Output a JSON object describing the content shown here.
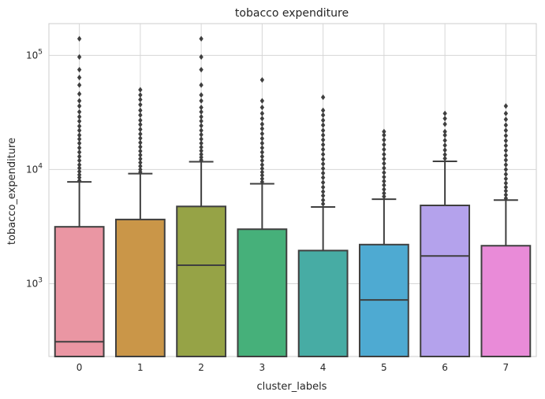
{
  "chart_data": {
    "type": "box",
    "title": "tobacco expenditure",
    "xlabel": "cluster_labels",
    "ylabel": "tobacco_expenditure",
    "yscale": "log",
    "ylim": [
      230,
      190000
    ],
    "yticks": [
      {
        "value": 1000,
        "base": "10",
        "exp": "3"
      },
      {
        "value": 10000,
        "base": "10",
        "exp": "4"
      },
      {
        "value": 100000,
        "base": "10",
        "exp": "5"
      }
    ],
    "grid": true,
    "categories": [
      "0",
      "1",
      "2",
      "3",
      "4",
      "5",
      "6",
      "7"
    ],
    "colors": [
      "#ea96a3",
      "#ca9648",
      "#96a346",
      "#46b07a",
      "#47aca4",
      "#4eaad2",
      "#b4a2ec",
      "#e98bd8"
    ],
    "boxes": [
      {
        "whisker_low": 230,
        "q1": 230,
        "median": 310,
        "q3": 3150,
        "whisker_high": 7800,
        "outliers": [
          8000,
          8500,
          9000,
          9600,
          10300,
          11000,
          12000,
          13000,
          14200,
          15500,
          17000,
          18500,
          20000,
          22000,
          24000,
          26500,
          29000,
          32000,
          36000,
          40000,
          46000,
          55000,
          64000,
          75000,
          97000,
          140000
        ]
      },
      {
        "whisker_low": 230,
        "q1": 230,
        "median": 230,
        "q3": 3650,
        "whisker_high": 9200,
        "outliers": [
          9500,
          10000,
          10700,
          11500,
          12400,
          13400,
          14500,
          15800,
          17200,
          18800,
          20500,
          22500,
          24800,
          27000,
          30000,
          33000,
          37000,
          41000,
          45000,
          50000
        ]
      },
      {
        "whisker_low": 230,
        "q1": 230,
        "median": 1450,
        "q3": 4750,
        "whisker_high": 11700,
        "outliers": [
          12100,
          12800,
          13600,
          14600,
          15700,
          17000,
          18500,
          20200,
          22000,
          24200,
          26600,
          29000,
          32000,
          35000,
          40000,
          45000,
          55000,
          75000,
          97000,
          140000
        ]
      },
      {
        "whisker_low": 230,
        "q1": 230,
        "median": 230,
        "q3": 3000,
        "whisker_high": 7500,
        "outliers": [
          7800,
          8300,
          8900,
          9500,
          10200,
          11000,
          12000,
          13000,
          14200,
          15500,
          17000,
          18700,
          20600,
          22800,
          25000,
          28000,
          31000,
          35000,
          40000,
          61000
        ]
      },
      {
        "whisker_low": 230,
        "q1": 230,
        "median": 230,
        "q3": 1950,
        "whisker_high": 4700,
        "outliers": [
          5000,
          5400,
          5900,
          6400,
          7000,
          7700,
          8500,
          9300,
          10200,
          11200,
          12300,
          13600,
          15000,
          16500,
          18200,
          20000,
          22000,
          24500,
          27000,
          30000,
          33000,
          43000
        ]
      },
      {
        "whisker_low": 230,
        "q1": 230,
        "median": 720,
        "q3": 2200,
        "whisker_high": 5500,
        "outliers": [
          5800,
          6200,
          6700,
          7300,
          7900,
          8600,
          9400,
          10300,
          11300,
          12400,
          13600,
          15000,
          16500,
          18200,
          20000,
          21500
        ]
      },
      {
        "whisker_low": 230,
        "q1": 230,
        "median": 1750,
        "q3": 4850,
        "whisker_high": 11800,
        "outliers": [
          12500,
          13500,
          14800,
          16300,
          18000,
          20000,
          21500,
          25000,
          28000,
          31000
        ]
      },
      {
        "whisker_low": 230,
        "q1": 230,
        "median": 230,
        "q3": 2150,
        "whisker_high": 5400,
        "outliers": [
          5600,
          6000,
          6500,
          7000,
          7600,
          8300,
          9100,
          10000,
          11000,
          12100,
          13300,
          14700,
          16200,
          17900,
          19800,
          22000,
          24500,
          27500,
          31000,
          36000
        ]
      }
    ]
  }
}
